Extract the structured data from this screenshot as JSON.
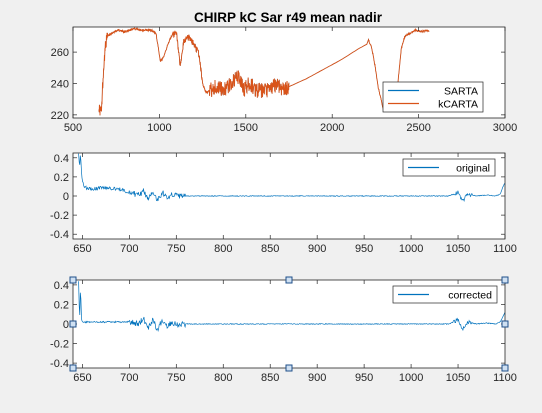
{
  "figure": {
    "background": "#f0f0f0"
  },
  "chart_data": [
    {
      "type": "line",
      "title": "CHIRP kC Sar r49 mean nadir",
      "xlabel": "",
      "ylabel": "",
      "xlim": [
        500,
        3000
      ],
      "ylim": [
        218,
        276
      ],
      "xticks": [
        500,
        1000,
        1500,
        2000,
        2500,
        3000
      ],
      "yticks": [
        220,
        240,
        260
      ],
      "grid": false,
      "legend": {
        "location": "bottom-right",
        "entries": [
          "SARTA",
          "kCARTA"
        ]
      },
      "series": [
        {
          "name": "SARTA",
          "color": "#0072bd"
        },
        {
          "name": "kCARTA",
          "color": "#d95319"
        }
      ],
      "segments": [
        {
          "x": [
            650,
            665,
            672,
            680,
            690,
            700,
            720,
            740,
            760,
            800,
            850,
            900,
            950,
            980,
            995,
            1005,
            1020,
            1040,
            1060,
            1080,
            1100,
            1120,
            1140,
            1160,
            1180,
            1200,
            1215,
            1230,
            1250,
            1270,
            1300,
            1330,
            1360,
            1400,
            1430,
            1460,
            1490,
            1520,
            1560,
            1600,
            1640,
            1680,
            1720,
            1750
          ],
          "y": [
            224,
            222,
            240,
            255,
            266,
            270,
            272,
            273,
            274,
            273,
            275,
            274,
            274,
            272,
            262,
            254,
            256,
            262,
            268,
            272,
            271,
            250,
            266,
            270,
            268,
            265,
            262,
            258,
            240,
            234,
            236,
            238,
            236,
            238,
            242,
            244,
            236,
            240,
            236,
            235,
            236,
            240,
            236,
            238
          ]
        },
        {
          "x": [
            1750,
            1850,
            1950,
            2050,
            2150,
            2200,
            2210
          ],
          "y": [
            238,
            243,
            249,
            255,
            262,
            265,
            268
          ]
        },
        {
          "x": [
            2210,
            2230,
            2250,
            2265,
            2280,
            2300
          ],
          "y": [
            268,
            262,
            250,
            238,
            231,
            222
          ]
        },
        {
          "x": [
            2380,
            2400,
            2420,
            2450,
            2480,
            2520,
            2550,
            2560
          ],
          "y": [
            240,
            262,
            270,
            272,
            274,
            273,
            274,
            273
          ]
        }
      ]
    },
    {
      "type": "line",
      "title": "",
      "xlabel": "",
      "ylabel": "",
      "xlim": [
        640,
        1100
      ],
      "ylim": [
        -0.45,
        0.45
      ],
      "xticks": [
        650,
        700,
        750,
        800,
        850,
        900,
        950,
        1000,
        1050,
        1100
      ],
      "yticks": [
        -0.4,
        -0.2,
        0,
        0.2,
        0.4
      ],
      "grid": false,
      "legend": {
        "location": "top-right",
        "entries": [
          "original"
        ]
      },
      "series": [
        {
          "name": "original",
          "color": "#0072bd"
        }
      ],
      "x": [
        646,
        647,
        648,
        649,
        650,
        652,
        655,
        660,
        665,
        670,
        680,
        690,
        700,
        710,
        715,
        720,
        725,
        730,
        735,
        740,
        745,
        750,
        760,
        780,
        800,
        850,
        900,
        950,
        1000,
        1040,
        1050,
        1055,
        1060,
        1070,
        1080,
        1090,
        1095,
        1098,
        1100
      ],
      "y": [
        0.44,
        0.3,
        0.45,
        0.25,
        0.15,
        0.1,
        0.08,
        0.07,
        0.08,
        0.09,
        0.08,
        0.07,
        0.04,
        0.01,
        0.05,
        -0.03,
        0.06,
        -0.05,
        0.04,
        -0.01,
        0.02,
        0.0,
        0.0,
        0.0,
        0.0,
        0.0,
        0.0,
        0.0,
        0.0,
        0.0,
        0.04,
        -0.06,
        0.02,
        0.0,
        0.01,
        0.0,
        0.02,
        0.1,
        0.14
      ]
    },
    {
      "type": "line",
      "title": "",
      "xlabel": "",
      "ylabel": "",
      "xlim": [
        640,
        1100
      ],
      "ylim": [
        -0.45,
        0.45
      ],
      "xticks": [
        650,
        700,
        750,
        800,
        850,
        900,
        950,
        1000,
        1050,
        1100
      ],
      "yticks": [
        -0.4,
        -0.2,
        0,
        0.2,
        0.4
      ],
      "grid": false,
      "legend": {
        "location": "top-right",
        "entries": [
          "corrected"
        ]
      },
      "series": [
        {
          "name": "corrected",
          "color": "#0072bd"
        }
      ],
      "x": [
        646,
        647,
        648,
        649,
        650,
        652,
        655,
        660,
        670,
        680,
        690,
        700,
        710,
        715,
        720,
        725,
        730,
        735,
        740,
        745,
        750,
        760,
        780,
        800,
        850,
        900,
        950,
        1000,
        1040,
        1050,
        1055,
        1060,
        1070,
        1080,
        1090,
        1095,
        1098,
        1100
      ],
      "y": [
        0.44,
        0.02,
        0.4,
        0.05,
        0.02,
        0.02,
        0.02,
        0.02,
        0.02,
        0.02,
        0.02,
        0.02,
        0.0,
        0.06,
        -0.04,
        0.05,
        -0.06,
        0.04,
        -0.02,
        0.02,
        0.0,
        0.0,
        0.0,
        0.0,
        0.0,
        0.0,
        0.0,
        0.0,
        0.0,
        0.04,
        -0.05,
        0.02,
        0.0,
        0.01,
        0.0,
        0.02,
        0.08,
        0.12
      ]
    }
  ]
}
